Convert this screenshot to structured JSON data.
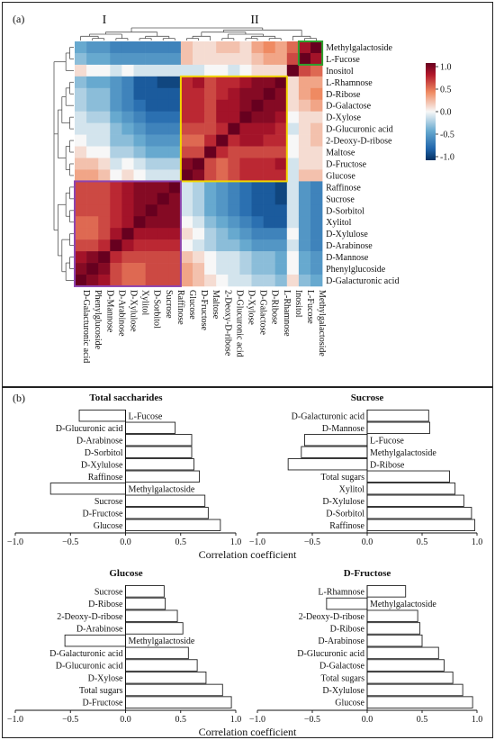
{
  "panel_a": {
    "label": "(a)",
    "cluster_I": "I",
    "cluster_II": "II",
    "row_labels": [
      "Methylgalactoside",
      "L-Fucose",
      "Inositol",
      "L-Rhamnose",
      "D-Ribose",
      "D-Galactose",
      "D-Xylose",
      "D-Glucuronic acid",
      "2-Deoxy-D-ribose",
      "Maltose",
      "D-Fructose",
      "Glucose",
      "Raffinose",
      "Sucrose",
      "D-Sorbitol",
      "Xylitol",
      "D-Xylulose",
      "D-Arabinose",
      "D-Mannose",
      "Phenylglucoside",
      "D-Galacturonic acid"
    ],
    "col_labels": [
      "D-Galacturonic acid",
      "Phenylglucoside",
      "D-Mannose",
      "D-Arabinose",
      "D-Xylulose",
      "Xylitol",
      "D-Sorbitol",
      "Sucrose",
      "Raffinose",
      "Glucose",
      "D-Fructose",
      "Maltose",
      "2-Deoxy-D-ribose",
      "D-Glucuronic acid",
      "D-Xylose",
      "D-Galactose",
      "D-Ribose",
      "L-Rhamnose",
      "Inositol",
      "L-Fucose",
      "Methylgalactoside"
    ],
    "colorbar_ticks": [
      "1.0",
      "0.5",
      "0.0",
      "-0.5",
      "-1.0"
    ],
    "colors": {
      "pos": "#b2182b",
      "neg": "#2166ac",
      "mid": "#f7f7f7",
      "box_green": "#2ca02c",
      "box_yellow": "#f2d600",
      "box_purple": "#8e44ad"
    }
  },
  "panel_b": {
    "label": "(b)",
    "xlabel": "Correlation coefficient",
    "ticks": [
      "−1.0",
      "−0.5",
      "0.0",
      "0.5",
      "1.0"
    ]
  },
  "chart_data": [
    {
      "type": "heatmap",
      "title": "",
      "rows": [
        "Methylgalactoside",
        "L-Fucose",
        "Inositol",
        "L-Rhamnose",
        "D-Ribose",
        "D-Galactose",
        "D-Xylose",
        "D-Glucuronic acid",
        "2-Deoxy-D-ribose",
        "Maltose",
        "D-Fructose",
        "Glucose",
        "Raffinose",
        "Sucrose",
        "D-Sorbitol",
        "Xylitol",
        "D-Xylulose",
        "D-Arabinose",
        "D-Mannose",
        "Phenylglucoside",
        "D-Galacturonic acid"
      ],
      "columns": [
        "D-Galacturonic acid",
        "Phenylglucoside",
        "D-Mannose",
        "D-Arabinose",
        "D-Xylulose",
        "Xylitol",
        "D-Sorbitol",
        "Sucrose",
        "Raffinose",
        "Glucose",
        "D-Fructose",
        "Maltose",
        "2-Deoxy-D-ribose",
        "D-Glucuronic acid",
        "D-Xylose",
        "D-Galactose",
        "D-Ribose",
        "L-Rhamnose",
        "Inositol",
        "L-Fucose",
        "Methylgalactoside"
      ],
      "values": [
        [
          -0.4,
          -0.5,
          -0.5,
          -0.6,
          -0.6,
          -0.6,
          -0.6,
          -0.6,
          -0.6,
          0.2,
          0.1,
          0.1,
          0.2,
          0.2,
          0.1,
          0.3,
          0.4,
          0.3,
          0.5,
          0.8,
          1.0
        ],
        [
          -0.3,
          -0.4,
          -0.4,
          -0.5,
          -0.5,
          -0.5,
          -0.5,
          -0.5,
          -0.5,
          0.2,
          0.1,
          0.1,
          0.1,
          0.1,
          0.1,
          0.2,
          0.3,
          0.3,
          0.6,
          1.0,
          0.8
        ],
        [
          0.1,
          0.0,
          0.0,
          -0.1,
          0.0,
          -0.1,
          -0.1,
          -0.1,
          -0.1,
          -0.1,
          -0.1,
          0.0,
          0.0,
          -0.1,
          0.0,
          0.1,
          0.1,
          0.1,
          1.0,
          0.6,
          0.5
        ],
        [
          -0.3,
          -0.4,
          -0.4,
          -0.5,
          -0.6,
          -0.8,
          -0.8,
          -0.9,
          -0.9,
          0.7,
          0.8,
          0.6,
          0.7,
          0.7,
          0.8,
          0.9,
          0.9,
          1.0,
          0.1,
          0.3,
          0.3
        ],
        [
          -0.2,
          -0.3,
          -0.3,
          -0.5,
          -0.6,
          -0.8,
          -0.8,
          -0.8,
          -0.8,
          0.7,
          0.7,
          0.6,
          0.7,
          0.8,
          0.9,
          0.9,
          1.0,
          0.9,
          0.1,
          0.3,
          0.4
        ],
        [
          -0.2,
          -0.3,
          -0.3,
          -0.5,
          -0.6,
          -0.7,
          -0.8,
          -0.8,
          -0.8,
          0.7,
          0.7,
          0.6,
          0.8,
          0.8,
          0.9,
          1.0,
          0.9,
          0.9,
          0.1,
          0.2,
          0.3
        ],
        [
          -0.1,
          -0.2,
          -0.2,
          -0.4,
          -0.5,
          -0.6,
          -0.7,
          -0.7,
          -0.7,
          0.7,
          0.7,
          0.6,
          0.8,
          0.8,
          1.0,
          0.9,
          0.9,
          0.8,
          0.0,
          0.1,
          0.1
        ],
        [
          -0.1,
          -0.1,
          -0.1,
          -0.3,
          -0.4,
          -0.5,
          -0.6,
          -0.6,
          -0.6,
          0.6,
          0.6,
          0.6,
          0.7,
          1.0,
          0.8,
          0.8,
          0.8,
          0.7,
          -0.1,
          0.1,
          0.2
        ],
        [
          0.0,
          -0.1,
          -0.1,
          -0.3,
          -0.3,
          -0.4,
          -0.5,
          -0.5,
          -0.5,
          0.5,
          0.5,
          0.7,
          1.0,
          0.7,
          0.8,
          0.8,
          0.7,
          0.7,
          0.0,
          0.1,
          0.2
        ],
        [
          0.1,
          0.0,
          0.0,
          -0.2,
          -0.2,
          -0.3,
          -0.4,
          -0.4,
          -0.4,
          0.6,
          0.6,
          1.0,
          0.7,
          0.6,
          0.6,
          0.6,
          0.6,
          0.6,
          0.0,
          0.1,
          0.1
        ],
        [
          0.2,
          0.2,
          0.1,
          -0.1,
          0.0,
          -0.1,
          -0.2,
          -0.2,
          -0.2,
          0.9,
          1.0,
          0.6,
          0.5,
          0.6,
          0.7,
          0.7,
          0.7,
          0.8,
          -0.1,
          0.1,
          0.1
        ],
        [
          0.3,
          0.3,
          0.2,
          0.0,
          0.1,
          0.0,
          -0.1,
          -0.1,
          -0.1,
          1.0,
          0.9,
          0.6,
          0.5,
          0.6,
          0.7,
          0.7,
          0.7,
          0.7,
          -0.1,
          0.2,
          0.2
        ],
        [
          0.6,
          0.6,
          0.6,
          0.7,
          0.8,
          0.9,
          0.9,
          0.9,
          1.0,
          -0.1,
          -0.2,
          -0.4,
          -0.5,
          -0.6,
          -0.7,
          -0.8,
          -0.8,
          -0.9,
          -0.1,
          -0.5,
          -0.6
        ],
        [
          0.6,
          0.6,
          0.6,
          0.7,
          0.8,
          0.9,
          0.9,
          1.0,
          0.9,
          -0.1,
          -0.2,
          -0.4,
          -0.5,
          -0.6,
          -0.7,
          -0.8,
          -0.8,
          -0.9,
          -0.1,
          -0.5,
          -0.6
        ],
        [
          0.6,
          0.6,
          0.6,
          0.7,
          0.8,
          0.9,
          1.0,
          0.9,
          0.9,
          -0.1,
          -0.2,
          -0.4,
          -0.5,
          -0.6,
          -0.7,
          -0.8,
          -0.8,
          -0.8,
          -0.1,
          -0.5,
          -0.6
        ],
        [
          0.5,
          0.5,
          0.6,
          0.7,
          0.8,
          1.0,
          0.9,
          0.9,
          0.9,
          0.0,
          -0.1,
          -0.3,
          -0.4,
          -0.5,
          -0.6,
          -0.7,
          -0.8,
          -0.8,
          -0.1,
          -0.5,
          -0.6
        ],
        [
          0.5,
          0.5,
          0.6,
          0.8,
          1.0,
          0.8,
          0.8,
          0.8,
          0.8,
          0.1,
          0.0,
          -0.2,
          -0.3,
          -0.4,
          -0.5,
          -0.6,
          -0.6,
          -0.6,
          0.0,
          -0.5,
          -0.6
        ],
        [
          0.6,
          0.6,
          0.7,
          1.0,
          0.8,
          0.7,
          0.7,
          0.7,
          0.7,
          0.0,
          -0.1,
          -0.2,
          -0.3,
          -0.3,
          -0.4,
          -0.5,
          -0.5,
          -0.5,
          -0.1,
          -0.5,
          -0.6
        ],
        [
          0.8,
          0.9,
          1.0,
          0.7,
          0.6,
          0.6,
          0.6,
          0.6,
          0.6,
          0.2,
          0.1,
          0.0,
          -0.1,
          -0.1,
          -0.2,
          -0.3,
          -0.3,
          -0.4,
          0.0,
          -0.4,
          -0.5
        ],
        [
          0.9,
          1.0,
          0.9,
          0.6,
          0.5,
          0.5,
          0.6,
          0.6,
          0.6,
          0.3,
          0.2,
          0.0,
          -0.1,
          -0.1,
          -0.2,
          -0.3,
          -0.3,
          -0.4,
          0.0,
          -0.4,
          -0.5
        ],
        [
          1.0,
          0.9,
          0.8,
          0.6,
          0.5,
          0.5,
          0.6,
          0.6,
          0.6,
          0.3,
          0.2,
          0.1,
          0.0,
          -0.1,
          -0.1,
          -0.2,
          -0.2,
          -0.3,
          0.1,
          -0.3,
          -0.4
        ]
      ],
      "color_range": [
        -1.0,
        1.0
      ],
      "clusters": [
        "I",
        "II"
      ],
      "legend": "right"
    },
    {
      "type": "bar",
      "orientation": "horizontal",
      "title": "Total saccharides",
      "categories": [
        "L-Fucose",
        "D-Glucuronic acid",
        "D-Arabinose",
        "D-Sorbitol",
        "D-Xylulose",
        "Raffinose",
        "Methylgalactoside",
        "Sucrose",
        "D-Fructose",
        "Glucose"
      ],
      "values": [
        -0.42,
        0.45,
        0.6,
        0.6,
        0.62,
        0.67,
        -0.68,
        0.72,
        0.75,
        0.86
      ],
      "xlabel": "Correlation coefficient",
      "xlim": [
        -1.0,
        1.0
      ],
      "grid": false
    },
    {
      "type": "bar",
      "orientation": "horizontal",
      "title": "Sucrose",
      "categories": [
        "D-Galacturonic acid",
        "D-Mannose",
        "L-Fucose",
        "Methylgalactoside",
        "D-Ribose",
        "Total sugars",
        "Xylitol",
        "D-Xylulose",
        "D-Sorbitol",
        "Raffinose"
      ],
      "values": [
        0.56,
        0.57,
        -0.57,
        -0.6,
        -0.72,
        0.75,
        0.8,
        0.88,
        0.95,
        0.98
      ],
      "xlabel": "Correlation coefficient",
      "xlim": [
        -1.0,
        1.0
      ],
      "grid": false
    },
    {
      "type": "bar",
      "orientation": "horizontal",
      "title": "Glucose",
      "categories": [
        "Sucrose",
        "D-Ribose",
        "2-Deoxy-D-ribose",
        "D-Arabinose",
        "Methylgalactoside",
        "D-Galacturonic acid",
        "D-Glucuronic acid",
        "D-Xylose",
        "Total sugars",
        "D-Fructose"
      ],
      "values": [
        0.35,
        0.36,
        0.47,
        0.52,
        -0.55,
        0.57,
        0.65,
        0.73,
        0.88,
        0.96
      ],
      "xlabel": "Correlation coefficient",
      "xlim": [
        -1.0,
        1.0
      ],
      "grid": false
    },
    {
      "type": "bar",
      "orientation": "horizontal",
      "title": "D-Fructose",
      "categories": [
        "L-Rhamnose",
        "Methylgalactoside",
        "2-Deoxy-D-ribose",
        "D-Ribose",
        "D-Arabinose",
        "D-Glucuronic acid",
        "D-Galactose",
        "Total sugars",
        "D-Xylulose",
        "Glucose"
      ],
      "values": [
        0.35,
        -0.37,
        0.46,
        0.48,
        0.5,
        0.65,
        0.7,
        0.78,
        0.87,
        0.96
      ],
      "xlabel": "Correlation coefficient",
      "xlim": [
        -1.0,
        1.0
      ],
      "grid": false
    }
  ]
}
